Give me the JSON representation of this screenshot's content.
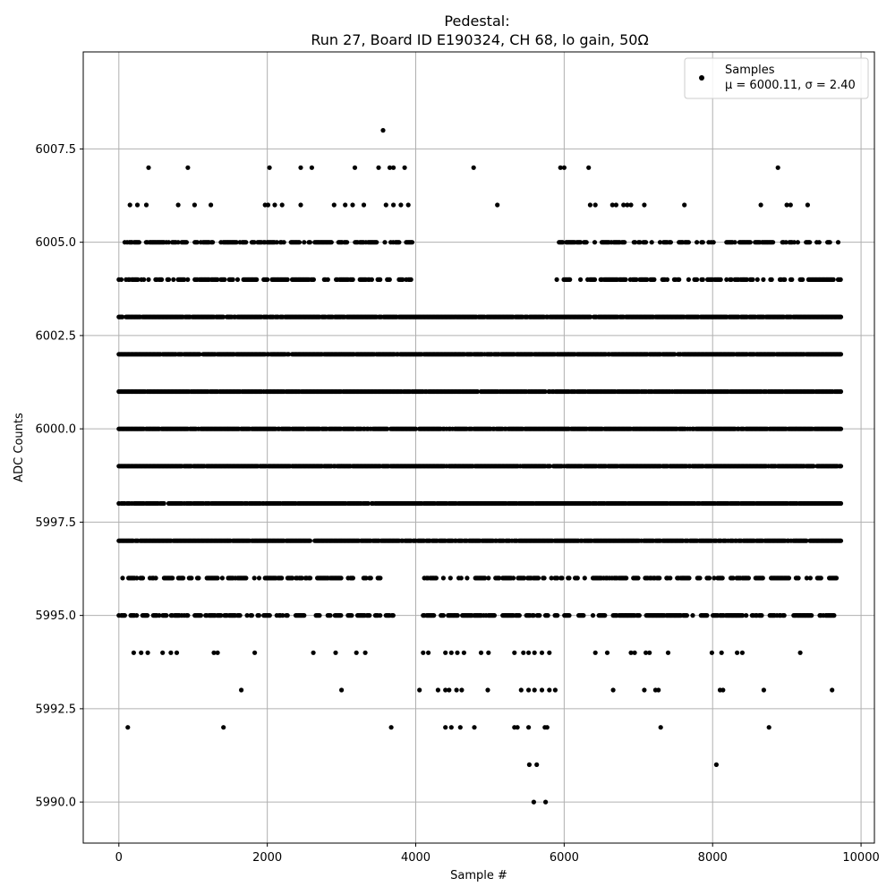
{
  "chart_data": {
    "type": "scatter",
    "title": "Pedestal:",
    "subtitle": "Run 27, Board ID E190324, CH 68, lo gain, 50Ω",
    "xlabel": "Sample #",
    "ylabel": "ADC Counts",
    "xlim": [
      -480,
      10180
    ],
    "ylim": [
      5988.9,
      6010.1
    ],
    "x_ticks": [
      0,
      2000,
      4000,
      6000,
      8000,
      10000
    ],
    "x_tick_labels": [
      "0",
      "2000",
      "4000",
      "6000",
      "8000",
      "10000"
    ],
    "y_ticks": [
      5990.0,
      5992.5,
      5995.0,
      5997.5,
      6000.0,
      6002.5,
      6005.0,
      6007.5
    ],
    "y_tick_labels": [
      "5990.0",
      "5992.5",
      "5995.0",
      "5997.5",
      "6000.0",
      "6002.5",
      "6005.0",
      "6007.5"
    ],
    "grid": true,
    "legend_position": "top-right",
    "series": [
      {
        "name": "Samples",
        "stats_label": "μ = 6000.11, σ = 2.40",
        "mean": 6000.11,
        "sigma": 2.4,
        "color": "#000000",
        "sample_count": 9728,
        "dense_levels": [
          5997,
          5998,
          5999,
          6000,
          6001,
          6002,
          6003
        ],
        "sparse_levels": [
          {
            "y": 6004,
            "ranges": [
              [
                0,
                3950
              ],
              [
                5900,
                9728
              ]
            ]
          },
          {
            "y": 5996,
            "ranges": [
              [
                50,
                3600
              ],
              [
                4100,
                9728
              ]
            ]
          },
          {
            "y": 6005,
            "ranges": [
              [
                80,
                3980
              ],
              [
                5900,
                9728
              ]
            ]
          },
          {
            "y": 5995,
            "ranges": [
              [
                0,
                3700
              ],
              [
                4100,
                9650
              ]
            ]
          }
        ],
        "outliers": [
          [
            3560,
            6008
          ],
          [
            400,
            6007
          ],
          [
            930,
            6007
          ],
          [
            2030,
            6007
          ],
          [
            2450,
            6007
          ],
          [
            2600,
            6007
          ],
          [
            3180,
            6007
          ],
          [
            3500,
            6007
          ],
          [
            3650,
            6007
          ],
          [
            3700,
            6007
          ],
          [
            3850,
            6007
          ],
          [
            4780,
            6007
          ],
          [
            5950,
            6007
          ],
          [
            6000,
            6007
          ],
          [
            6330,
            6007
          ],
          [
            8880,
            6007
          ],
          [
            150,
            6006
          ],
          [
            250,
            6006
          ],
          [
            370,
            6006
          ],
          [
            800,
            6006
          ],
          [
            1020,
            6006
          ],
          [
            1240,
            6006
          ],
          [
            1970,
            6006
          ],
          [
            2010,
            6006
          ],
          [
            2100,
            6006
          ],
          [
            2200,
            6006
          ],
          [
            2450,
            6006
          ],
          [
            2900,
            6006
          ],
          [
            3050,
            6006
          ],
          [
            3150,
            6006
          ],
          [
            3300,
            6006
          ],
          [
            3600,
            6006
          ],
          [
            3700,
            6006
          ],
          [
            3800,
            6006
          ],
          [
            3900,
            6006
          ],
          [
            5100,
            6006
          ],
          [
            6350,
            6006
          ],
          [
            6420,
            6006
          ],
          [
            6650,
            6006
          ],
          [
            6700,
            6006
          ],
          [
            6800,
            6006
          ],
          [
            6850,
            6006
          ],
          [
            6900,
            6006
          ],
          [
            7080,
            6006
          ],
          [
            7620,
            6006
          ],
          [
            8650,
            6006
          ],
          [
            9000,
            6006
          ],
          [
            9050,
            6006
          ],
          [
            9280,
            6006
          ],
          [
            200,
            5994
          ],
          [
            300,
            5994
          ],
          [
            390,
            5994
          ],
          [
            590,
            5994
          ],
          [
            700,
            5994
          ],
          [
            780,
            5994
          ],
          [
            1280,
            5994
          ],
          [
            1330,
            5994
          ],
          [
            1830,
            5994
          ],
          [
            2620,
            5994
          ],
          [
            2920,
            5994
          ],
          [
            3200,
            5994
          ],
          [
            3320,
            5994
          ],
          [
            4100,
            5994
          ],
          [
            4170,
            5994
          ],
          [
            4400,
            5994
          ],
          [
            4480,
            5994
          ],
          [
            4560,
            5994
          ],
          [
            4650,
            5994
          ],
          [
            4880,
            5994
          ],
          [
            4980,
            5994
          ],
          [
            5330,
            5994
          ],
          [
            5450,
            5994
          ],
          [
            5520,
            5994
          ],
          [
            5600,
            5994
          ],
          [
            5700,
            5994
          ],
          [
            5800,
            5994
          ],
          [
            6420,
            5994
          ],
          [
            6580,
            5994
          ],
          [
            6900,
            5994
          ],
          [
            6950,
            5994
          ],
          [
            7100,
            5994
          ],
          [
            7150,
            5994
          ],
          [
            7400,
            5994
          ],
          [
            7990,
            5994
          ],
          [
            8120,
            5994
          ],
          [
            8330,
            5994
          ],
          [
            8400,
            5994
          ],
          [
            9180,
            5994
          ],
          [
            1650,
            5993
          ],
          [
            3000,
            5993
          ],
          [
            4050,
            5993
          ],
          [
            4300,
            5993
          ],
          [
            4400,
            5993
          ],
          [
            4450,
            5993
          ],
          [
            4550,
            5993
          ],
          [
            4620,
            5993
          ],
          [
            4970,
            5993
          ],
          [
            5420,
            5993
          ],
          [
            5520,
            5993
          ],
          [
            5600,
            5993
          ],
          [
            5700,
            5993
          ],
          [
            5800,
            5993
          ],
          [
            5880,
            5993
          ],
          [
            6660,
            5993
          ],
          [
            7080,
            5993
          ],
          [
            7230,
            5993
          ],
          [
            7270,
            5993
          ],
          [
            8100,
            5993
          ],
          [
            8140,
            5993
          ],
          [
            8690,
            5993
          ],
          [
            9610,
            5993
          ],
          [
            120,
            5992
          ],
          [
            1410,
            5992
          ],
          [
            3670,
            5992
          ],
          [
            4400,
            5992
          ],
          [
            4480,
            5992
          ],
          [
            4600,
            5992
          ],
          [
            4790,
            5992
          ],
          [
            5330,
            5992
          ],
          [
            5370,
            5992
          ],
          [
            5520,
            5992
          ],
          [
            5740,
            5992
          ],
          [
            5770,
            5992
          ],
          [
            7300,
            5992
          ],
          [
            8760,
            5992
          ],
          [
            5530,
            5991
          ],
          [
            5630,
            5991
          ],
          [
            8050,
            5991
          ],
          [
            5590,
            5990
          ],
          [
            5750,
            5990
          ]
        ]
      }
    ]
  }
}
